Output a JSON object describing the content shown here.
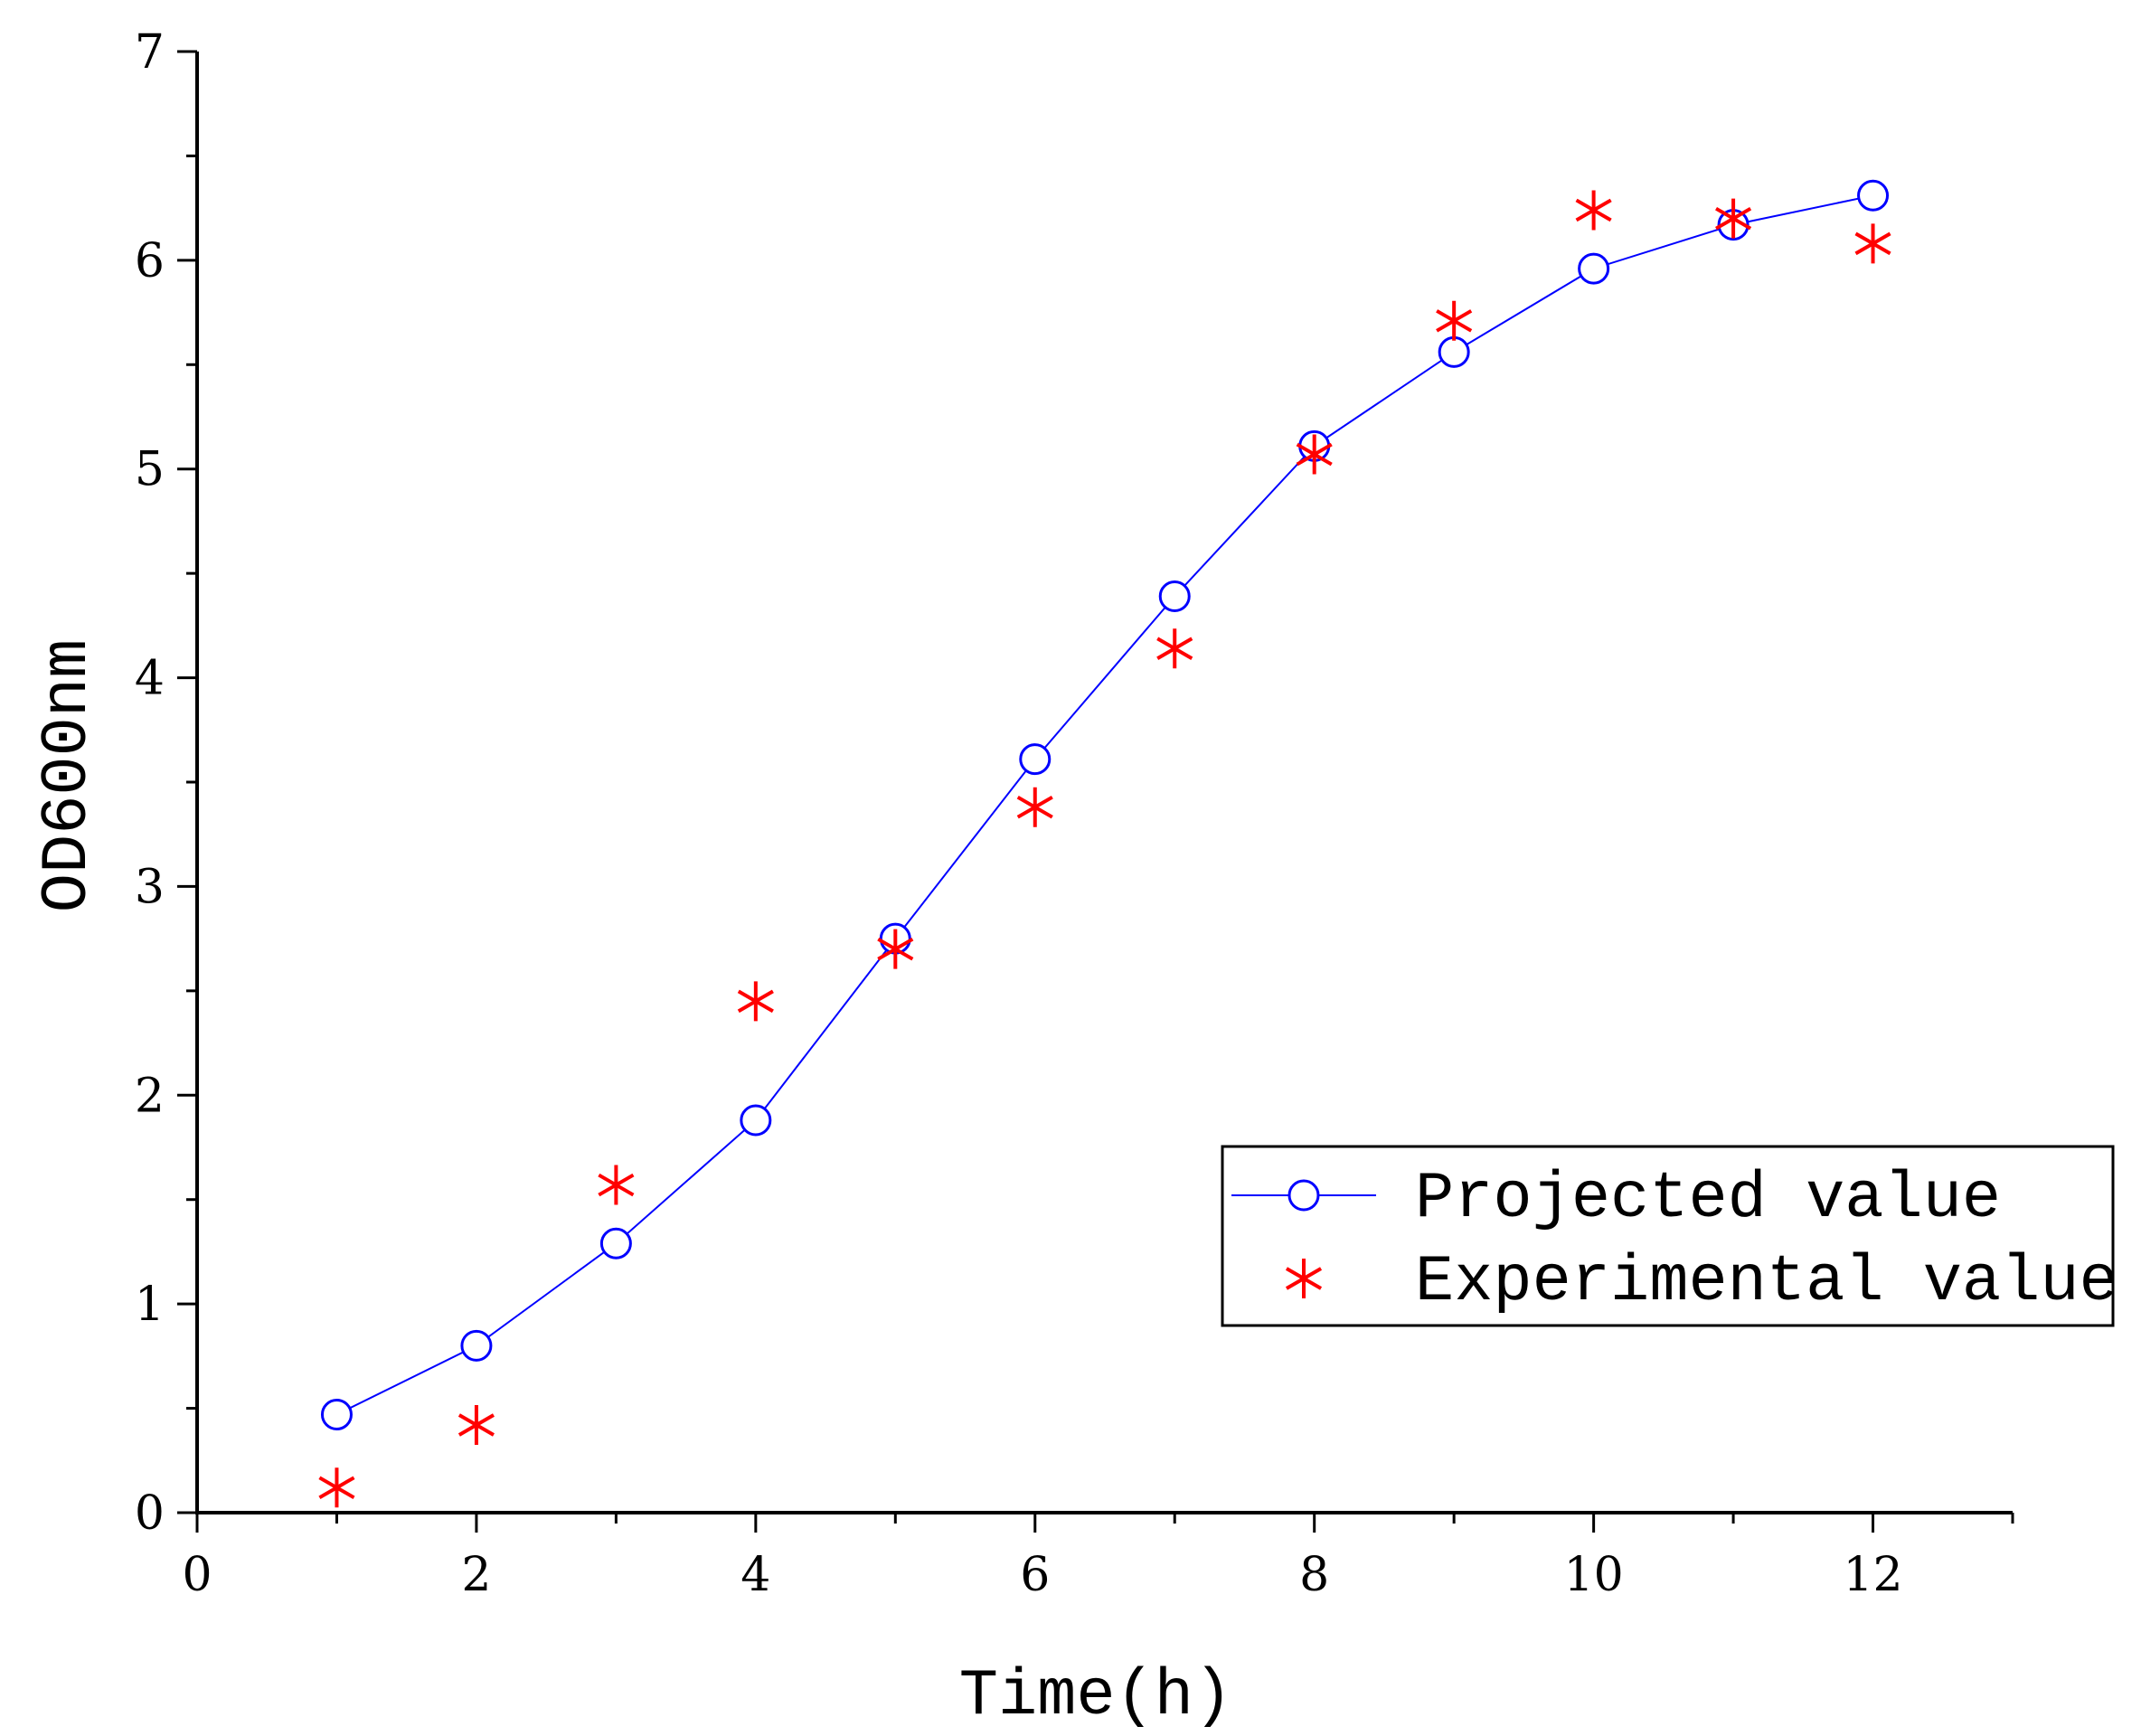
{
  "chart_data": {
    "type": "line",
    "title": "",
    "xlabel": "Time(h)",
    "ylabel": "OD600nm",
    "xlim": [
      0,
      13
    ],
    "ylim": [
      0,
      7
    ],
    "xticks": [
      0,
      2,
      4,
      6,
      8,
      10,
      12
    ],
    "yticks": [
      0,
      1,
      2,
      3,
      4,
      5,
      6,
      7
    ],
    "grid": false,
    "legend_position": "lower-right",
    "series": [
      {
        "name": "Projected value",
        "style": "line-circle",
        "color": "#0000ff",
        "x": [
          1,
          2,
          3,
          4,
          5,
          6,
          7,
          8,
          9,
          10,
          11,
          12
        ],
        "y": [
          0.47,
          0.8,
          1.29,
          1.88,
          2.75,
          3.61,
          4.39,
          5.11,
          5.56,
          5.96,
          6.17,
          6.31
        ]
      },
      {
        "name": "Experimental value",
        "style": "asterisk",
        "color": "#ff0000",
        "x": [
          1,
          2,
          3,
          4,
          5,
          6,
          7,
          8,
          9,
          10,
          11,
          12
        ],
        "y": [
          0.12,
          0.42,
          1.57,
          2.45,
          2.7,
          3.38,
          4.14,
          5.07,
          5.71,
          6.24,
          6.2,
          6.08
        ]
      }
    ]
  }
}
